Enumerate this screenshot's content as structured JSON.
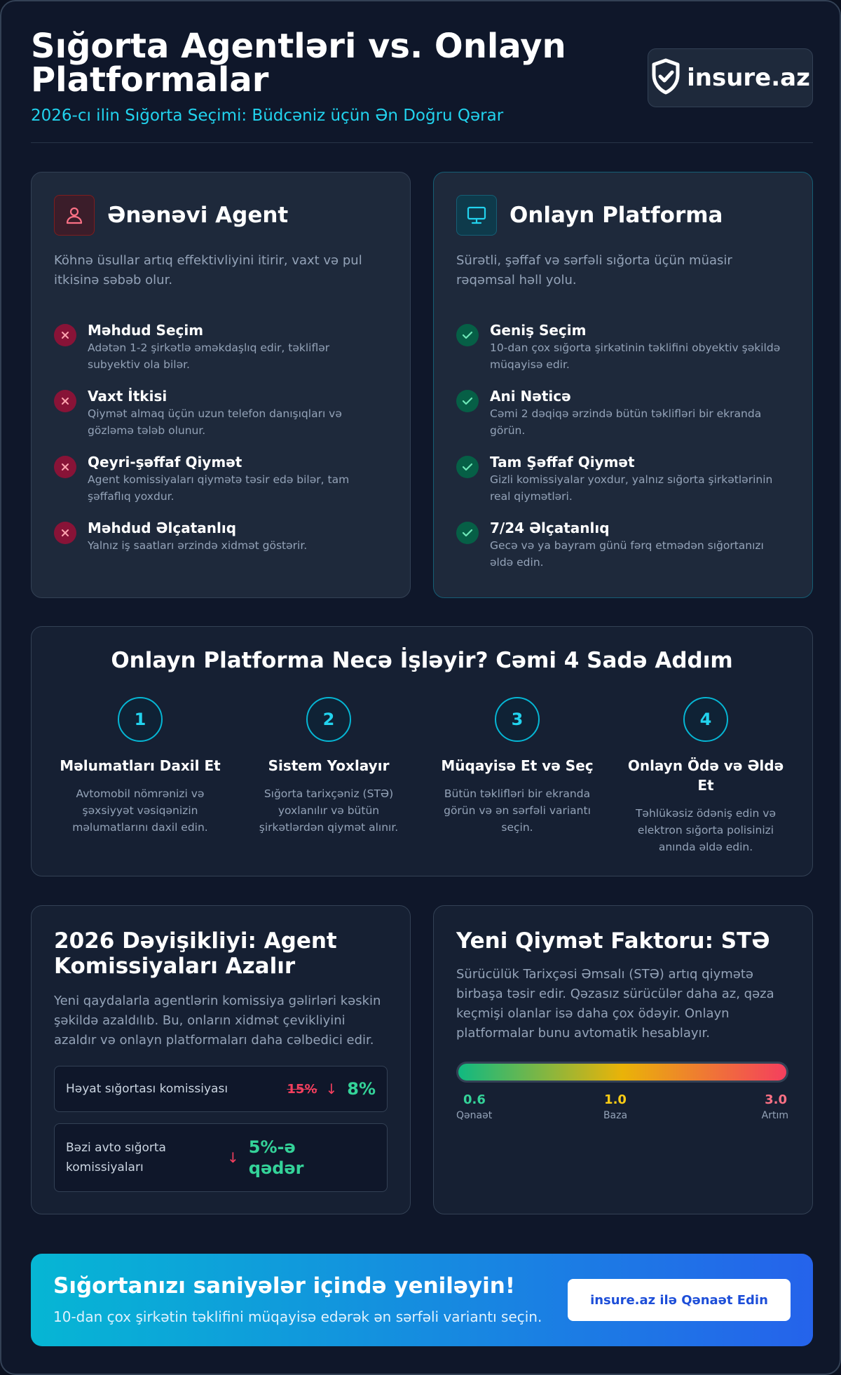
{
  "header": {
    "title": "Sığorta Agentləri vs. Onlayn Platformalar",
    "subtitle": "2026-cı ilin Sığorta Seçimi: Büdcəniz üçün Ən Doğru Qərar",
    "logo_text": "insure.az"
  },
  "agent_card": {
    "title": "Ənənəvi Agent",
    "icon": "user-icon",
    "description": "Köhnə üsullar artıq effektivliyini itirir, vaxt və pul itkisinə səbəb olur.",
    "items": [
      {
        "title": "Məhdud Seçim",
        "text": "Adətən 1-2 şirkətlə əməkdaşlıq edir, təkliflər subyektiv ola bilər."
      },
      {
        "title": "Vaxt İtkisi",
        "text": "Qiymət almaq üçün uzun telefon danışıqları və gözləmə tələb olunur."
      },
      {
        "title": "Qeyri-şəffaf Qiymət",
        "text": "Agent komissiyaları qiymətə təsir edə bilər, tam şəffaflıq yoxdur."
      },
      {
        "title": "Məhdud Əlçatanlıq",
        "text": "Yalnız iş saatları ərzində xidmət göstərir."
      }
    ]
  },
  "online_card": {
    "title": "Onlayn Platforma",
    "icon": "monitor-icon",
    "description": "Sürətli, şəffaf və sərfəli sığorta üçün müasir rəqəmsal həll yolu.",
    "items": [
      {
        "title": "Geniş Seçim",
        "text": "10-dan çox sığorta şirkətinin təklifini obyektiv şəkildə müqayisə edir."
      },
      {
        "title": "Ani Nəticə",
        "text": "Cəmi 2 dəqiqə ərzində bütün təklifləri bir ekranda görün."
      },
      {
        "title": "Tam Şəffaf Qiymət",
        "text": "Gizli komissiyalar yoxdur, yalnız sığorta şirkətlərinin real qiymətləri."
      },
      {
        "title": "7/24 Əlçatanlıq",
        "text": "Gecə və ya bayram günü fərq etmədən sığortanızı əldə edin."
      }
    ]
  },
  "steps": {
    "title": "Onlayn Platforma Necə İşləyir? Cəmi 4 Sadə Addım",
    "items": [
      {
        "num": "1",
        "title": "Məlumatları Daxil Et",
        "text": "Avtomobil nömrənizi və şəxsiyyət vəsiqənizin məlumatlarını daxil edin."
      },
      {
        "num": "2",
        "title": "Sistem Yoxlayır",
        "text": "Sığorta tarixçəniz (STƏ) yoxlanılır və bütün şirkətlərdən qiymət alınır."
      },
      {
        "num": "3",
        "title": "Müqayisə Et və Seç",
        "text": "Bütün təklifləri bir ekranda görün və ən sərfəli variantı seçin."
      },
      {
        "num": "4",
        "title": "Onlayn Ödə və Əldə Et",
        "text": "Təhlükəsiz ödəniş edin və elektron sığorta polisinizi anında əldə edin."
      }
    ]
  },
  "commission": {
    "title": "2026 Dəyişikliyi: Agent Komissiyaları Azalır",
    "description": "Yeni qaydalarla agentlərin komissiya gəlirləri kəskin şəkildə azaldılıb. Bu, onların xidmət çevikliyini azaldır və onlayn platformaları daha cəlbedici edir.",
    "rows": [
      {
        "label": "Həyat sığortası komissiyası",
        "old": "15%",
        "new": "8%"
      },
      {
        "label": "Bəzi avto sığorta komissiyaları",
        "new": "5%-ə qədər"
      }
    ]
  },
  "factor": {
    "title": "Yeni Qiymət Faktoru: STƏ",
    "description": "Sürücülük Tarixçəsi Əmsalı (STƏ) artıq qiymətə birbaşa təsir edir. Qəzasız sürücülər daha az, qəza keçmişi olanlar isə daha çox ödəyir. Onlayn platformalar bunu avtomatik hesablayır.",
    "scale": [
      {
        "value": "0.6",
        "label": "Qənaət",
        "color": "#34d399"
      },
      {
        "value": "1.0",
        "label": "Baza",
        "color": "#facc15"
      },
      {
        "value": "3.0",
        "label": "Artım",
        "color": "#fb7185"
      }
    ]
  },
  "cta": {
    "title": "Sığortanızı saniyələr içində yeniləyin!",
    "subtitle": "10-dan çox şirkətin təklifini müqayisə edərək ən sərfəli variantı seçin.",
    "button_label": "insure.az ilə Qənaət Edin"
  }
}
